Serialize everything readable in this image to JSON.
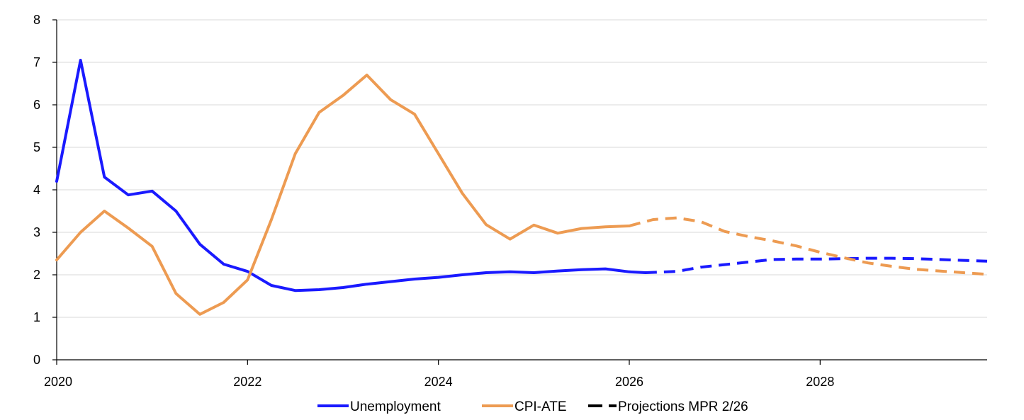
{
  "chart_data": {
    "type": "line",
    "title": "",
    "xlabel": "",
    "ylabel": "",
    "xlim": [
      2020,
      2029.75
    ],
    "ylim": [
      0,
      8
    ],
    "yticks": [
      0,
      1,
      2,
      3,
      4,
      5,
      6,
      7,
      8
    ],
    "xticks": [
      2020,
      2022,
      2024,
      2026,
      2028
    ],
    "xtick_labels": [
      "2020",
      "2022",
      "2024",
      "2026",
      "2028"
    ],
    "grid": "horizontal",
    "legend_position": "bottom",
    "series": [
      {
        "name": "Unemployment",
        "color": "#1a1aff",
        "style": "solid",
        "x": [
          2020.0,
          2020.25,
          2020.5,
          2020.75,
          2021.0,
          2021.25,
          2021.5,
          2021.75,
          2022.0,
          2022.25,
          2022.5,
          2022.75,
          2023.0,
          2023.25,
          2023.5,
          2023.75,
          2024.0,
          2024.25,
          2024.5,
          2024.75,
          2025.0,
          2025.25,
          2025.5,
          2025.75,
          2026.0,
          2026.17
        ],
        "values": [
          4.2,
          7.05,
          4.3,
          3.88,
          3.97,
          3.5,
          2.72,
          2.25,
          2.08,
          1.75,
          1.63,
          1.65,
          1.7,
          1.78,
          1.84,
          1.9,
          1.94,
          2.0,
          2.05,
          2.07,
          2.05,
          2.09,
          2.12,
          2.14,
          2.07,
          2.05
        ]
      },
      {
        "name": "CPI-ATE",
        "color": "#ed9b52",
        "style": "solid",
        "x": [
          2020.0,
          2020.25,
          2020.5,
          2020.75,
          2021.0,
          2021.25,
          2021.5,
          2021.75,
          2022.0,
          2022.25,
          2022.5,
          2022.75,
          2023.0,
          2023.25,
          2023.5,
          2023.75,
          2024.0,
          2024.25,
          2024.5,
          2024.75,
          2025.0,
          2025.25,
          2025.5,
          2025.75,
          2026.0
        ],
        "values": [
          2.35,
          3.0,
          3.5,
          3.1,
          2.67,
          1.56,
          1.07,
          1.35,
          1.88,
          3.3,
          4.85,
          5.82,
          6.22,
          6.7,
          6.12,
          5.78,
          4.85,
          3.92,
          3.18,
          2.84,
          3.17,
          2.98,
          3.09,
          3.13,
          3.15
        ]
      },
      {
        "name": "Unemployment projection",
        "color": "#1a1aff",
        "style": "dashed",
        "x": [
          2026.17,
          2026.5,
          2026.75,
          2027.0,
          2027.25,
          2027.5,
          2027.75,
          2028.0,
          2028.25,
          2028.5,
          2028.75,
          2029.0,
          2029.25,
          2029.5,
          2029.75
        ],
        "values": [
          2.05,
          2.08,
          2.18,
          2.24,
          2.3,
          2.36,
          2.37,
          2.37,
          2.38,
          2.39,
          2.39,
          2.38,
          2.36,
          2.34,
          2.32
        ]
      },
      {
        "name": "CPI-ATE projection",
        "color": "#ed9b52",
        "style": "dashed",
        "x": [
          2026.0,
          2026.25,
          2026.5,
          2026.75,
          2027.0,
          2027.25,
          2027.5,
          2027.75,
          2028.0,
          2028.25,
          2028.5,
          2028.75,
          2029.0,
          2029.25,
          2029.5,
          2029.75
        ],
        "values": [
          3.15,
          3.3,
          3.34,
          3.25,
          3.02,
          2.9,
          2.8,
          2.68,
          2.53,
          2.4,
          2.28,
          2.2,
          2.13,
          2.09,
          2.05,
          2.01
        ]
      }
    ],
    "legend": [
      {
        "label": "Unemployment",
        "color": "#1a1aff",
        "style": "solid"
      },
      {
        "label": "CPI-ATE",
        "color": "#ed9b52",
        "style": "solid"
      },
      {
        "label": "Projections MPR 2/26",
        "color": "#000000",
        "style": "dashed"
      }
    ]
  }
}
